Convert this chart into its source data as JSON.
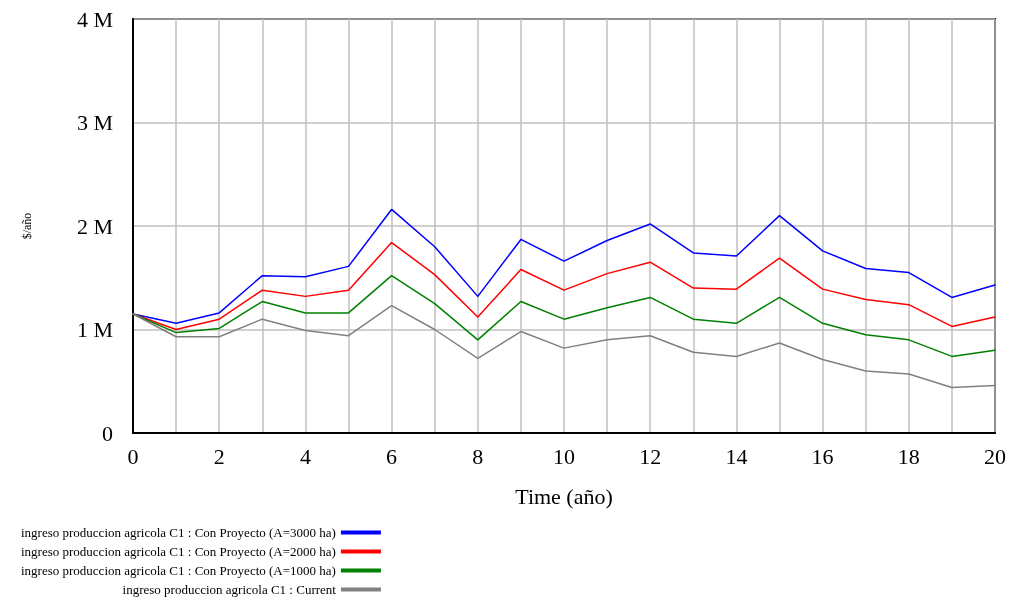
{
  "chart_data": {
    "type": "line",
    "xlabel": "Time (año)",
    "ylabel": "$/año",
    "x": [
      0,
      1,
      2,
      3,
      4,
      5,
      6,
      7,
      8,
      9,
      10,
      11,
      12,
      13,
      14,
      15,
      16,
      17,
      18,
      19,
      20
    ],
    "xlim": [
      0,
      20
    ],
    "xticks": [
      0,
      {
        "value": 1,
        "label": null
      },
      2,
      {
        "value": 3,
        "label": null
      },
      4,
      {
        "value": 5,
        "label": null
      },
      6,
      {
        "value": 7,
        "label": null
      },
      8,
      {
        "value": 9,
        "label": null
      },
      10,
      {
        "value": 11,
        "label": null
      },
      12,
      {
        "value": 13,
        "label": null
      },
      14,
      {
        "value": 15,
        "label": null
      },
      16,
      {
        "value": 17,
        "label": null
      },
      18,
      {
        "value": 19,
        "label": null
      },
      20
    ],
    "ylim": [
      0,
      4000000
    ],
    "yticks": [
      0,
      {
        "value": 1000000,
        "label": "1 M"
      },
      {
        "value": 2000000,
        "label": "2 M"
      },
      {
        "value": 3000000,
        "label": "3 M"
      },
      {
        "value": 4000000,
        "label": "4 M"
      }
    ],
    "grid": true,
    "legend": "bottom",
    "series": [
      {
        "name": "ingreso produccion agricola C1 : Con Proyecto (A=3000 ha)",
        "color": "#0000ff",
        "values": [
          1150000,
          1060000,
          1160000,
          1520000,
          1510000,
          1610000,
          2160000,
          1800000,
          1320000,
          1870000,
          1660000,
          1860000,
          2020000,
          1740000,
          1710000,
          2100000,
          1760000,
          1590000,
          1550000,
          1310000,
          1430000
        ]
      },
      {
        "name": "ingreso produccion agricola C1 : Con Proyecto (A=2000 ha)",
        "color": "#ff0000",
        "values": [
          1150000,
          1000000,
          1100000,
          1380000,
          1320000,
          1380000,
          1840000,
          1530000,
          1120000,
          1580000,
          1380000,
          1540000,
          1650000,
          1400000,
          1390000,
          1690000,
          1390000,
          1290000,
          1240000,
          1030000,
          1120000
        ]
      },
      {
        "name": "ingreso produccion agricola C1 : Con Proyecto (A=1000 ha)",
        "color": "#008000",
        "values": [
          1150000,
          970000,
          1010000,
          1270000,
          1160000,
          1160000,
          1520000,
          1250000,
          900000,
          1270000,
          1100000,
          1210000,
          1310000,
          1100000,
          1060000,
          1310000,
          1060000,
          950000,
          900000,
          740000,
          800000
        ]
      },
      {
        "name": "ingreso produccion agricola C1 : Current",
        "color": "#808080",
        "values": [
          1150000,
          930000,
          930000,
          1100000,
          990000,
          940000,
          1230000,
          1000000,
          720000,
          980000,
          820000,
          900000,
          940000,
          780000,
          740000,
          870000,
          710000,
          600000,
          570000,
          440000,
          460000
        ]
      }
    ]
  }
}
